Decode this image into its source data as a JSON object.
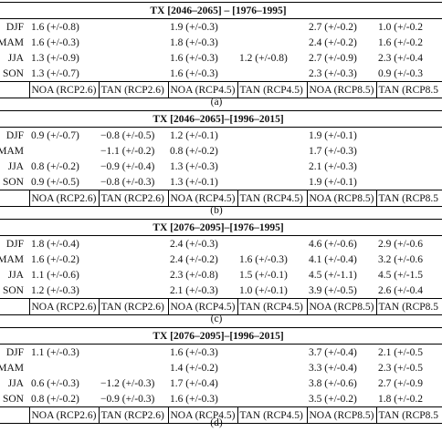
{
  "tables": [
    {
      "title": "TX [2046–2065] – [1976–1995]",
      "rows": [
        {
          "season": "DJF",
          "cells": [
            "1.6 (+/-0.8)",
            "",
            "1.9 (+/-0.3)",
            "",
            "2.7 (+/-0.2)",
            "1.0 (+/-0.2"
          ]
        },
        {
          "season": "MAM",
          "cells": [
            "1.6 (+/-0.3)",
            "",
            "1.8 (+/-0.3)",
            "",
            "2.4 (+/-0.2)",
            "1.6 (+/-0.2"
          ]
        },
        {
          "season": "JJA",
          "cells": [
            "1.3 (+/-0.9)",
            "",
            "1.6 (+/-0.3)",
            "1.2 (+/-0.8)",
            "2.7 (+/-0.9)",
            "2.3 (+/-0.4"
          ]
        },
        {
          "season": "SON",
          "cells": [
            "1.3 (+/-0.7)",
            "",
            "1.6 (+/-0.3)",
            "",
            "2.3 (+/-0.3)",
            "0.9 (+/-0.3"
          ]
        }
      ],
      "footer": [
        "NOA (RCP2.6)",
        "TAN (RCP2.6)",
        "NOA (RCP4.5)",
        "TAN (RCP4.5)",
        "NOA (RCP8.5)",
        "TAN (RCP8.5"
      ],
      "caption": "(a)"
    },
    {
      "title": "TX [2046–2065]–[1996–2015]",
      "rows": [
        {
          "season": "DJF",
          "cells": [
            "0.9 (+/-0.7)",
            "−0.8 (+/-0.5)",
            "1.2 (+/-0.1)",
            "",
            "1.9 (+/-0.1)",
            ""
          ]
        },
        {
          "season": "MAM",
          "cells": [
            "",
            "−1.1 (+/-0.2)",
            "0.8 (+/-0.2)",
            "",
            "1.7 (+/-0.3)",
            ""
          ]
        },
        {
          "season": "JJA",
          "cells": [
            "0.8 (+/-0.2)",
            "−0.9 (+/-0.4)",
            "1.3 (+/-0.3)",
            "",
            "2.1 (+/-0.3)",
            ""
          ]
        },
        {
          "season": "SON",
          "cells": [
            "0.9 (+/-0.5)",
            "−0.8 (+/-0.3)",
            "1.3 (+/-0.1)",
            "",
            "1.9 (+/-0.1)",
            ""
          ]
        }
      ],
      "footer": [
        "NOA (RCP2.6)",
        "TAN (RCP2.6)",
        "NOA (RCP4.5)",
        "TAN (RCP4.5)",
        "NOA (RCP8.5)",
        "TAN (RCP8.5"
      ],
      "caption": "(b)"
    },
    {
      "title": "TX [2076–2095]–[1976–1995]",
      "rows": [
        {
          "season": "DJF",
          "cells": [
            "1.8 (+/-0.4)",
            "",
            "2.4 (+/-0.3)",
            "",
            "4.6 (+/-0.6)",
            "2.9 (+/-0.6"
          ]
        },
        {
          "season": "MAM",
          "cells": [
            "1.6 (+/-0.2)",
            "",
            "2.4 (+/-0.2)",
            "1.6 (+/-0.3)",
            "4.1 (+/-0.4)",
            "3.2 (+/-0.6"
          ]
        },
        {
          "season": "JJA",
          "cells": [
            "1.1 (+/-0.6)",
            "",
            "2.3 (+/-0.8)",
            "1.5 (+/-0.1)",
            "4.5 (+/-1.1)",
            "4.5 (+/-1.5"
          ]
        },
        {
          "season": "SON",
          "cells": [
            "1.2 (+/-0.3)",
            "",
            "2.1 (+/-0.3)",
            "1.0 (+/-0.1)",
            "3.9 (+/-0.5)",
            "2.6 (+/-0.4"
          ]
        }
      ],
      "footer": [
        "NOA (RCP2.6)",
        "TAN (RCP2.6)",
        "NOA (RCP4.5)",
        "TAN (RCP4.5)",
        "NOA (RCP8.5)",
        "TAN (RCP8.5"
      ],
      "caption": "(c)"
    },
    {
      "title": "TX [2076–2095]–[1996–2015]",
      "rows": [
        {
          "season": "DJF",
          "cells": [
            "1.1 (+/-0.3)",
            "",
            "1.6 (+/-0.3)",
            "",
            "3.7 (+/-0.4)",
            "2.1 (+/-0.5"
          ]
        },
        {
          "season": "MAM",
          "cells": [
            "",
            "",
            "1.4 (+/-0.2)",
            "",
            "3.3 (+/-0.4)",
            "2.3 (+/-0.5"
          ]
        },
        {
          "season": "JJA",
          "cells": [
            "0.6 (+/-0.3)",
            "−1.2 (+/-0.3)",
            "1.7 (+/-0.4)",
            "",
            "3.8 (+/-0.6)",
            "2.7 (+/-0.9"
          ]
        },
        {
          "season": "SON",
          "cells": [
            "0.8 (+/-0.2)",
            "−0.9 (+/-0.3)",
            "1.6 (+/-0.3)",
            "",
            "3.5 (+/-0.2)",
            "1.8 (+/-0.2"
          ]
        }
      ],
      "footer": [
        "NOA (RCP2.6)",
        "TAN (RCP2.6)",
        "NOA (RCP4.5)",
        "TAN (RCP4.5)",
        "NOA (RCP8.5)",
        "TAN (RCP8.5"
      ],
      "caption": "(d)"
    }
  ]
}
